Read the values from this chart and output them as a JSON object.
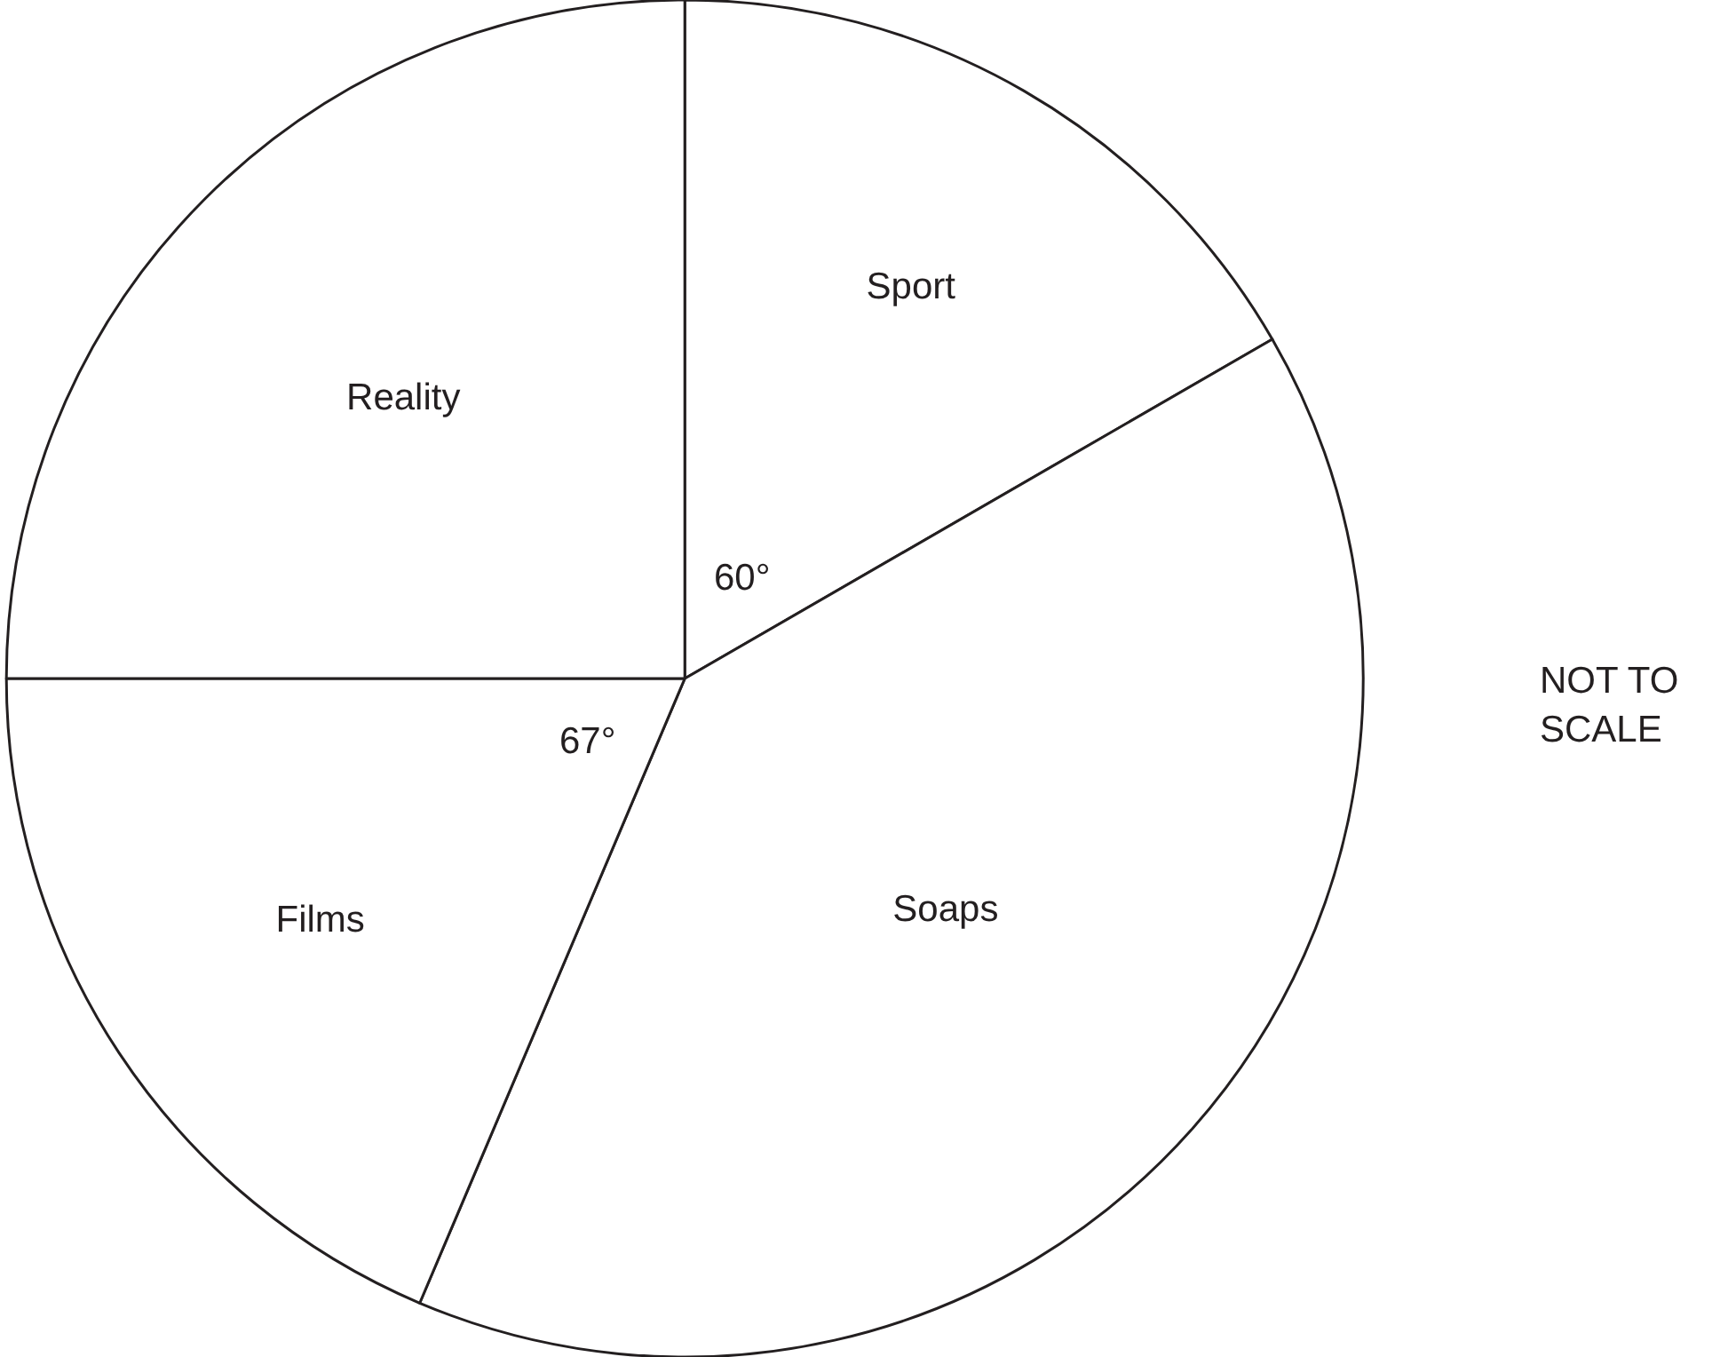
{
  "chart_data": {
    "type": "pie",
    "categories": [
      "Sport",
      "Soaps",
      "Films",
      "Reality"
    ],
    "values": [
      60,
      143,
      67,
      90
    ],
    "colors": [
      "#ffffff",
      "#ffffff",
      "#ffffff",
      "#ffffff"
    ],
    "value_labels": [
      "60°",
      null,
      "67°",
      null
    ],
    "annotations": [
      "NOT TO\nSCALE"
    ],
    "legend": false
  }
}
